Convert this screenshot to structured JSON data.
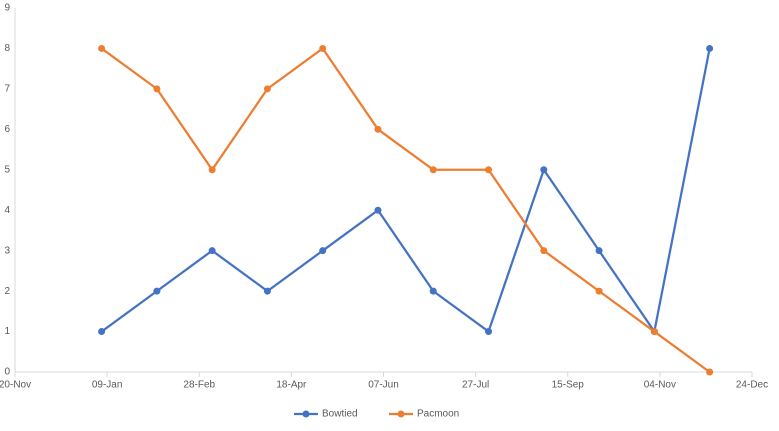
{
  "chart_data": {
    "type": "line",
    "x": [
      47,
      77,
      107,
      137,
      167,
      197,
      227,
      257,
      287,
      317,
      347,
      377
    ],
    "series": [
      {
        "name": "Bowtied",
        "color": "#4472c4",
        "values": [
          1,
          2,
          3,
          2,
          3,
          4,
          2,
          1,
          5,
          3,
          1,
          8
        ]
      },
      {
        "name": "Pacmoon",
        "color": "#ed7d31",
        "values": [
          8,
          7,
          5,
          7,
          8,
          6,
          5,
          5,
          3,
          2,
          1,
          0
        ]
      }
    ],
    "xlim": [
      0,
      400
    ],
    "xticks": [
      {
        "value": 0,
        "label": "20-Nov"
      },
      {
        "value": 50,
        "label": "09-Jan"
      },
      {
        "value": 100,
        "label": "28-Feb"
      },
      {
        "value": 150,
        "label": "18-Apr"
      },
      {
        "value": 200,
        "label": "07-Jun"
      },
      {
        "value": 250,
        "label": "27-Jul"
      },
      {
        "value": 300,
        "label": "15-Sep"
      },
      {
        "value": 350,
        "label": "04-Nov"
      },
      {
        "value": 400,
        "label": "24-Dec"
      }
    ],
    "ylim": [
      0,
      9
    ],
    "yticks": [
      0,
      1,
      2,
      3,
      4,
      5,
      6,
      7,
      8,
      9
    ],
    "grid": false,
    "legend": "bottom"
  }
}
